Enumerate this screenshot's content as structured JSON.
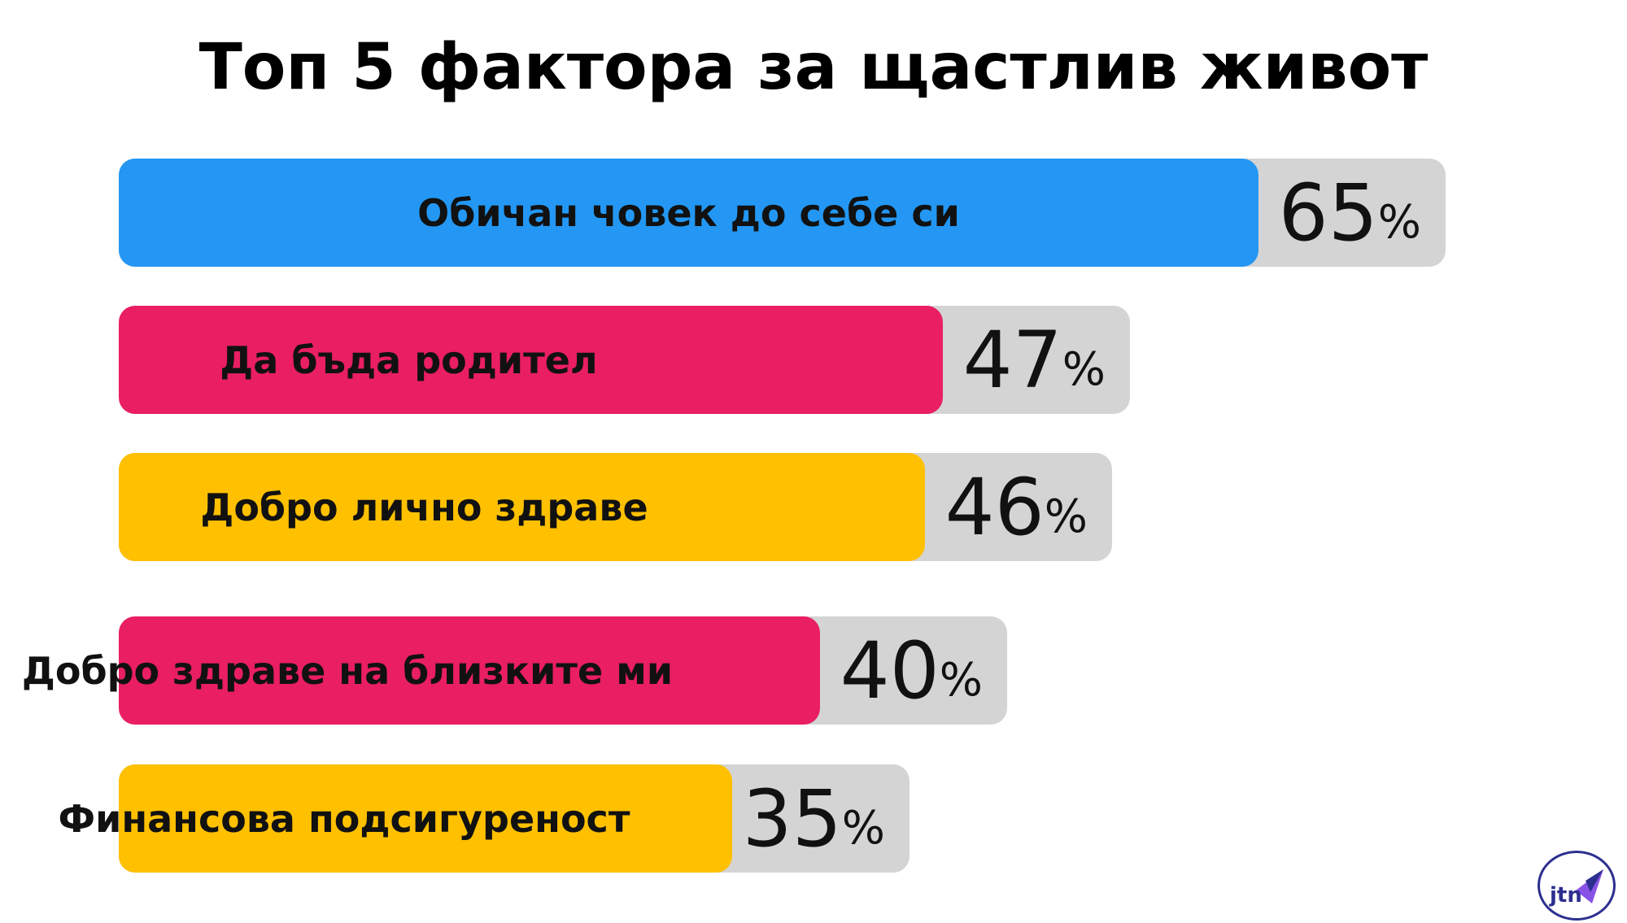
{
  "chart_data": {
    "type": "bar",
    "title": "Топ 5 фактора за щастлив живот",
    "orientation": "horizontal",
    "categories": [
      "Обичан човек до себе си",
      "Да бъда родител",
      "Добро лично здраве",
      "Добро здраве на близките ми",
      "Финансова подсигуреност"
    ],
    "values": [
      65,
      47,
      46,
      40,
      35
    ],
    "value_labels": [
      "65",
      "47",
      "46",
      "40",
      "35"
    ],
    "unit": "%",
    "colors": [
      "#2397f3",
      "#e91e63",
      "#ffc000",
      "#e91e63",
      "#ffc000"
    ],
    "track_color": "#d4d4d4"
  },
  "logo": {
    "text": "jtn",
    "color": "#2c2f8f",
    "accent": "#7b3fe4"
  }
}
